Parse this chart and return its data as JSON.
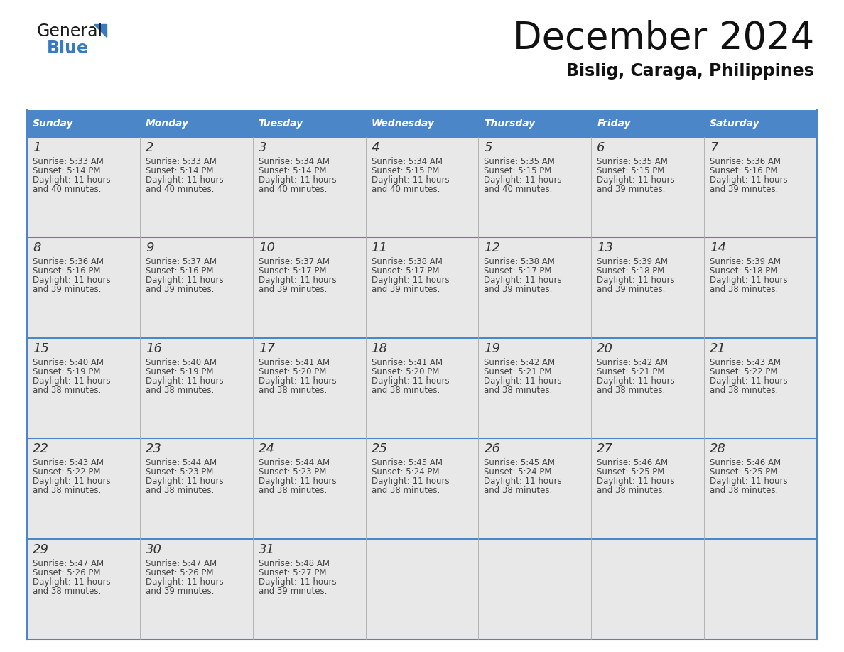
{
  "title": "December 2024",
  "subtitle": "Bislig, Caraga, Philippines",
  "header_color": "#4a86c8",
  "header_text_color": "#ffffff",
  "cell_bg_color": "#e8e8e8",
  "border_color": "#4a86c8",
  "text_color": "#333333",
  "days_of_week": [
    "Sunday",
    "Monday",
    "Tuesday",
    "Wednesday",
    "Thursday",
    "Friday",
    "Saturday"
  ],
  "weeks": [
    [
      {
        "day": 1,
        "sunrise": "5:33 AM",
        "sunset": "5:14 PM",
        "daylight": "11 hours",
        "daylight2": "and 40 minutes."
      },
      {
        "day": 2,
        "sunrise": "5:33 AM",
        "sunset": "5:14 PM",
        "daylight": "11 hours",
        "daylight2": "and 40 minutes."
      },
      {
        "day": 3,
        "sunrise": "5:34 AM",
        "sunset": "5:14 PM",
        "daylight": "11 hours",
        "daylight2": "and 40 minutes."
      },
      {
        "day": 4,
        "sunrise": "5:34 AM",
        "sunset": "5:15 PM",
        "daylight": "11 hours",
        "daylight2": "and 40 minutes."
      },
      {
        "day": 5,
        "sunrise": "5:35 AM",
        "sunset": "5:15 PM",
        "daylight": "11 hours",
        "daylight2": "and 40 minutes."
      },
      {
        "day": 6,
        "sunrise": "5:35 AM",
        "sunset": "5:15 PM",
        "daylight": "11 hours",
        "daylight2": "and 39 minutes."
      },
      {
        "day": 7,
        "sunrise": "5:36 AM",
        "sunset": "5:16 PM",
        "daylight": "11 hours",
        "daylight2": "and 39 minutes."
      }
    ],
    [
      {
        "day": 8,
        "sunrise": "5:36 AM",
        "sunset": "5:16 PM",
        "daylight": "11 hours",
        "daylight2": "and 39 minutes."
      },
      {
        "day": 9,
        "sunrise": "5:37 AM",
        "sunset": "5:16 PM",
        "daylight": "11 hours",
        "daylight2": "and 39 minutes."
      },
      {
        "day": 10,
        "sunrise": "5:37 AM",
        "sunset": "5:17 PM",
        "daylight": "11 hours",
        "daylight2": "and 39 minutes."
      },
      {
        "day": 11,
        "sunrise": "5:38 AM",
        "sunset": "5:17 PM",
        "daylight": "11 hours",
        "daylight2": "and 39 minutes."
      },
      {
        "day": 12,
        "sunrise": "5:38 AM",
        "sunset": "5:17 PM",
        "daylight": "11 hours",
        "daylight2": "and 39 minutes."
      },
      {
        "day": 13,
        "sunrise": "5:39 AM",
        "sunset": "5:18 PM",
        "daylight": "11 hours",
        "daylight2": "and 39 minutes."
      },
      {
        "day": 14,
        "sunrise": "5:39 AM",
        "sunset": "5:18 PM",
        "daylight": "11 hours",
        "daylight2": "and 38 minutes."
      }
    ],
    [
      {
        "day": 15,
        "sunrise": "5:40 AM",
        "sunset": "5:19 PM",
        "daylight": "11 hours",
        "daylight2": "and 38 minutes."
      },
      {
        "day": 16,
        "sunrise": "5:40 AM",
        "sunset": "5:19 PM",
        "daylight": "11 hours",
        "daylight2": "and 38 minutes."
      },
      {
        "day": 17,
        "sunrise": "5:41 AM",
        "sunset": "5:20 PM",
        "daylight": "11 hours",
        "daylight2": "and 38 minutes."
      },
      {
        "day": 18,
        "sunrise": "5:41 AM",
        "sunset": "5:20 PM",
        "daylight": "11 hours",
        "daylight2": "and 38 minutes."
      },
      {
        "day": 19,
        "sunrise": "5:42 AM",
        "sunset": "5:21 PM",
        "daylight": "11 hours",
        "daylight2": "and 38 minutes."
      },
      {
        "day": 20,
        "sunrise": "5:42 AM",
        "sunset": "5:21 PM",
        "daylight": "11 hours",
        "daylight2": "and 38 minutes."
      },
      {
        "day": 21,
        "sunrise": "5:43 AM",
        "sunset": "5:22 PM",
        "daylight": "11 hours",
        "daylight2": "and 38 minutes."
      }
    ],
    [
      {
        "day": 22,
        "sunrise": "5:43 AM",
        "sunset": "5:22 PM",
        "daylight": "11 hours",
        "daylight2": "and 38 minutes."
      },
      {
        "day": 23,
        "sunrise": "5:44 AM",
        "sunset": "5:23 PM",
        "daylight": "11 hours",
        "daylight2": "and 38 minutes."
      },
      {
        "day": 24,
        "sunrise": "5:44 AM",
        "sunset": "5:23 PM",
        "daylight": "11 hours",
        "daylight2": "and 38 minutes."
      },
      {
        "day": 25,
        "sunrise": "5:45 AM",
        "sunset": "5:24 PM",
        "daylight": "11 hours",
        "daylight2": "and 38 minutes."
      },
      {
        "day": 26,
        "sunrise": "5:45 AM",
        "sunset": "5:24 PM",
        "daylight": "11 hours",
        "daylight2": "and 38 minutes."
      },
      {
        "day": 27,
        "sunrise": "5:46 AM",
        "sunset": "5:25 PM",
        "daylight": "11 hours",
        "daylight2": "and 38 minutes."
      },
      {
        "day": 28,
        "sunrise": "5:46 AM",
        "sunset": "5:25 PM",
        "daylight": "11 hours",
        "daylight2": "and 38 minutes."
      }
    ],
    [
      {
        "day": 29,
        "sunrise": "5:47 AM",
        "sunset": "5:26 PM",
        "daylight": "11 hours",
        "daylight2": "and 38 minutes."
      },
      {
        "day": 30,
        "sunrise": "5:47 AM",
        "sunset": "5:26 PM",
        "daylight": "11 hours",
        "daylight2": "and 39 minutes."
      },
      {
        "day": 31,
        "sunrise": "5:48 AM",
        "sunset": "5:27 PM",
        "daylight": "11 hours",
        "daylight2": "and 39 minutes."
      },
      null,
      null,
      null,
      null
    ]
  ],
  "logo_general_color": "#1a1a1a",
  "logo_blue_color": "#3a7abf",
  "logo_triangle_color": "#3a7abf",
  "fig_width": 11.88,
  "fig_height": 9.18,
  "dpi": 100
}
